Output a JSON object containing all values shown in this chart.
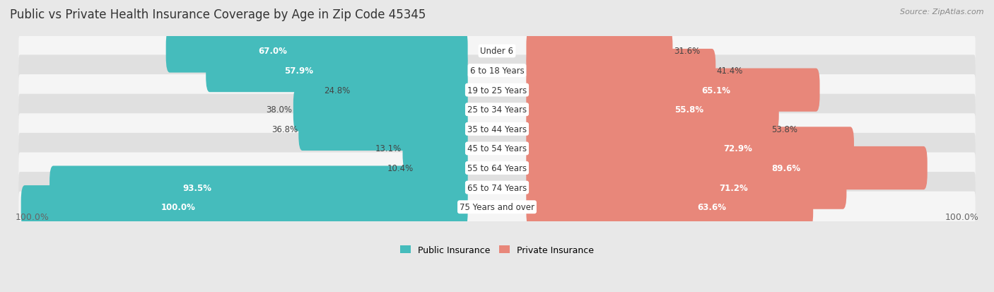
{
  "title": "Public vs Private Health Insurance Coverage by Age in Zip Code 45345",
  "source": "Source: ZipAtlas.com",
  "categories": [
    "Under 6",
    "6 to 18 Years",
    "19 to 25 Years",
    "25 to 34 Years",
    "35 to 44 Years",
    "45 to 54 Years",
    "55 to 64 Years",
    "65 to 74 Years",
    "75 Years and over"
  ],
  "public_values": [
    67.0,
    57.9,
    24.8,
    38.0,
    36.8,
    13.1,
    10.4,
    93.5,
    100.0
  ],
  "private_values": [
    31.6,
    41.4,
    65.1,
    55.8,
    53.8,
    72.9,
    89.6,
    71.2,
    63.6
  ],
  "public_color": "#45BCBC",
  "private_color": "#E8877A",
  "public_label": "Public Insurance",
  "private_label": "Private Insurance",
  "background_color": "#e8e8e8",
  "row_bg_even": "#f5f5f5",
  "row_bg_odd": "#e0e0e0",
  "title_fontsize": 12,
  "source_fontsize": 8,
  "label_fontsize": 9,
  "value_fontsize": 8.5,
  "cat_fontsize": 8.5
}
